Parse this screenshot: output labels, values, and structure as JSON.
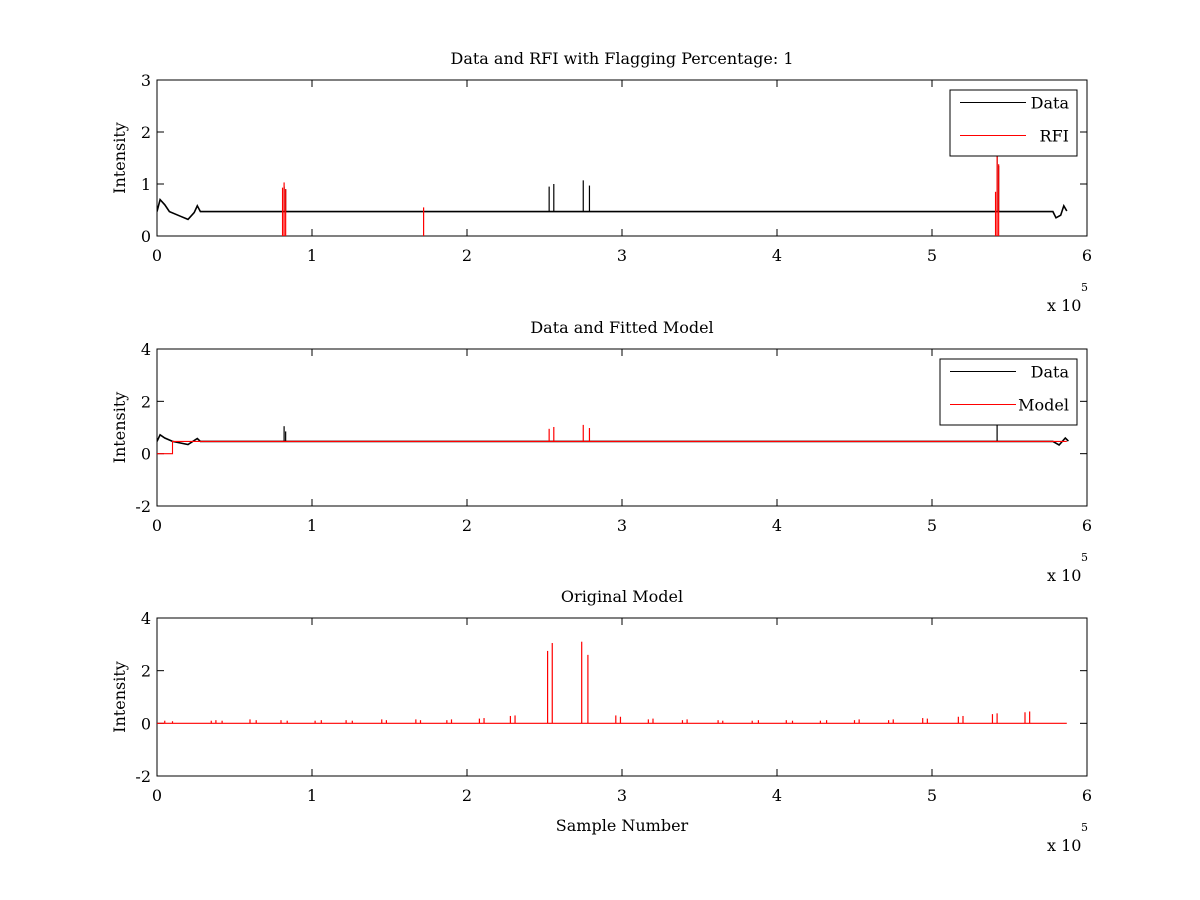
{
  "figure": {
    "background": "#ffffff",
    "colors": {
      "data": "#000000",
      "rfi": "#ff0000",
      "model": "#ff0000"
    }
  },
  "chart_data": [
    {
      "type": "line",
      "title": "Data and RFI with Flagging Percentage: 1",
      "xlabel": "",
      "ylabel": "Intensity",
      "xlim": [
        0,
        6
      ],
      "ylim": [
        0,
        3
      ],
      "x_scale_label": "x 10",
      "x_scale_exponent": "5",
      "xticks": [
        "0",
        "1",
        "2",
        "3",
        "4",
        "5",
        "6"
      ],
      "yticks": [
        "0",
        "1",
        "2",
        "3"
      ],
      "legend": {
        "placement": "top-right",
        "entries": [
          "Data",
          "RFI"
        ]
      },
      "series": [
        {
          "name": "Data",
          "color": "#000000",
          "baseline": 0.47,
          "baseline_dips": [
            {
              "x": 0.02,
              "y": 0.7
            },
            {
              "x": 0.05,
              "y": 0.6
            },
            {
              "x": 0.08,
              "y": 0.47
            },
            {
              "x": 0.15,
              "y": 0.38
            },
            {
              "x": 0.2,
              "y": 0.32
            },
            {
              "x": 0.24,
              "y": 0.45
            },
            {
              "x": 0.26,
              "y": 0.58
            },
            {
              "x": 0.28,
              "y": 0.47
            },
            {
              "x": 5.78,
              "y": 0.47
            },
            {
              "x": 5.8,
              "y": 0.35
            },
            {
              "x": 5.83,
              "y": 0.4
            },
            {
              "x": 5.85,
              "y": 0.58
            },
            {
              "x": 5.87,
              "y": 0.48
            }
          ],
          "spikes": [
            {
              "x": 0.82,
              "y": 0.95
            },
            {
              "x": 0.83,
              "y": 0.9
            },
            {
              "x": 2.53,
              "y": 0.95
            },
            {
              "x": 2.56,
              "y": 1.0
            },
            {
              "x": 2.75,
              "y": 1.07
            },
            {
              "x": 2.79,
              "y": 0.97
            },
            {
              "x": 5.42,
              "y": 1.55
            },
            {
              "x": 5.43,
              "y": 1.35
            }
          ]
        },
        {
          "name": "RFI",
          "color": "#ff0000",
          "spikes": [
            {
              "x": 0.81,
              "y": 0.93
            },
            {
              "x": 0.82,
              "y": 1.03
            },
            {
              "x": 0.83,
              "y": 0.9
            },
            {
              "x": 1.72,
              "y": 0.55
            },
            {
              "x": 5.41,
              "y": 0.85
            },
            {
              "x": 5.42,
              "y": 1.6
            },
            {
              "x": 5.43,
              "y": 1.38
            }
          ]
        }
      ]
    },
    {
      "type": "line",
      "title": "Data and Fitted Model",
      "xlabel": "",
      "ylabel": "Intensity",
      "xlim": [
        0,
        6
      ],
      "ylim": [
        -2,
        4
      ],
      "x_scale_label": "x 10",
      "x_scale_exponent": "5",
      "xticks": [
        "0",
        "1",
        "2",
        "3",
        "4",
        "5",
        "6"
      ],
      "yticks": [
        "-2",
        "0",
        "2",
        "4"
      ],
      "legend": {
        "placement": "top-right",
        "entries": [
          "Data",
          "Model"
        ]
      },
      "series": [
        {
          "name": "Data",
          "color": "#000000",
          "baseline": 0.47,
          "baseline_dips": [
            {
              "x": 0.02,
              "y": 0.72
            },
            {
              "x": 0.05,
              "y": 0.6
            },
            {
              "x": 0.1,
              "y": 0.47
            },
            {
              "x": 0.2,
              "y": 0.35
            },
            {
              "x": 0.26,
              "y": 0.58
            },
            {
              "x": 0.28,
              "y": 0.47
            },
            {
              "x": 5.78,
              "y": 0.47
            },
            {
              "x": 5.82,
              "y": 0.33
            },
            {
              "x": 5.86,
              "y": 0.6
            },
            {
              "x": 5.88,
              "y": 0.48
            }
          ],
          "spikes": [
            {
              "x": 0.82,
              "y": 1.05
            },
            {
              "x": 0.83,
              "y": 0.85
            },
            {
              "x": 5.42,
              "y": 1.3
            }
          ]
        },
        {
          "name": "Model",
          "color": "#ff0000",
          "baseline": 0.47,
          "baseline_dips": [
            {
              "x": 0.0,
              "y": 0.0
            },
            {
              "x": 0.1,
              "y": 0.0
            },
            {
              "x": 0.1,
              "y": 0.47
            }
          ],
          "spikes": [
            {
              "x": 2.53,
              "y": 0.95
            },
            {
              "x": 2.56,
              "y": 1.02
            },
            {
              "x": 2.75,
              "y": 1.1
            },
            {
              "x": 2.79,
              "y": 0.98
            }
          ]
        }
      ]
    },
    {
      "type": "line",
      "title": "Original Model",
      "xlabel": "Sample Number",
      "ylabel": "Intensity",
      "xlim": [
        0,
        6
      ],
      "ylim": [
        -2,
        4
      ],
      "x_scale_label": "x 10",
      "x_scale_exponent": "5",
      "xticks": [
        "0",
        "1",
        "2",
        "3",
        "4",
        "5",
        "6"
      ],
      "yticks": [
        "-2",
        "0",
        "2",
        "4"
      ],
      "series": [
        {
          "color": "#ff0000",
          "baseline": 0.0,
          "x_end": 5.87,
          "spikes": [
            {
              "x": 0.05,
              "y": 0.1
            },
            {
              "x": 0.1,
              "y": 0.08
            },
            {
              "x": 0.35,
              "y": 0.1
            },
            {
              "x": 0.38,
              "y": 0.12
            },
            {
              "x": 0.42,
              "y": 0.1
            },
            {
              "x": 0.6,
              "y": 0.15
            },
            {
              "x": 0.64,
              "y": 0.12
            },
            {
              "x": 0.8,
              "y": 0.12
            },
            {
              "x": 0.84,
              "y": 0.1
            },
            {
              "x": 1.02,
              "y": 0.1
            },
            {
              "x": 1.06,
              "y": 0.12
            },
            {
              "x": 1.22,
              "y": 0.12
            },
            {
              "x": 1.26,
              "y": 0.1
            },
            {
              "x": 1.45,
              "y": 0.15
            },
            {
              "x": 1.48,
              "y": 0.12
            },
            {
              "x": 1.67,
              "y": 0.15
            },
            {
              "x": 1.7,
              "y": 0.12
            },
            {
              "x": 1.87,
              "y": 0.12
            },
            {
              "x": 1.9,
              "y": 0.15
            },
            {
              "x": 2.08,
              "y": 0.18
            },
            {
              "x": 2.11,
              "y": 0.2
            },
            {
              "x": 2.28,
              "y": 0.28
            },
            {
              "x": 2.31,
              "y": 0.3
            },
            {
              "x": 2.52,
              "y": 2.75
            },
            {
              "x": 2.55,
              "y": 3.05
            },
            {
              "x": 2.74,
              "y": 3.1
            },
            {
              "x": 2.78,
              "y": 2.6
            },
            {
              "x": 2.96,
              "y": 0.3
            },
            {
              "x": 2.99,
              "y": 0.25
            },
            {
              "x": 3.17,
              "y": 0.15
            },
            {
              "x": 3.2,
              "y": 0.18
            },
            {
              "x": 3.39,
              "y": 0.12
            },
            {
              "x": 3.42,
              "y": 0.15
            },
            {
              "x": 3.62,
              "y": 0.12
            },
            {
              "x": 3.65,
              "y": 0.1
            },
            {
              "x": 3.84,
              "y": 0.1
            },
            {
              "x": 3.88,
              "y": 0.12
            },
            {
              "x": 4.06,
              "y": 0.12
            },
            {
              "x": 4.1,
              "y": 0.1
            },
            {
              "x": 4.28,
              "y": 0.1
            },
            {
              "x": 4.32,
              "y": 0.12
            },
            {
              "x": 4.5,
              "y": 0.12
            },
            {
              "x": 4.53,
              "y": 0.15
            },
            {
              "x": 4.72,
              "y": 0.12
            },
            {
              "x": 4.75,
              "y": 0.15
            },
            {
              "x": 4.94,
              "y": 0.2
            },
            {
              "x": 4.97,
              "y": 0.18
            },
            {
              "x": 5.17,
              "y": 0.25
            },
            {
              "x": 5.2,
              "y": 0.28
            },
            {
              "x": 5.39,
              "y": 0.35
            },
            {
              "x": 5.42,
              "y": 0.38
            },
            {
              "x": 5.6,
              "y": 0.42
            },
            {
              "x": 5.63,
              "y": 0.45
            }
          ]
        }
      ]
    }
  ]
}
